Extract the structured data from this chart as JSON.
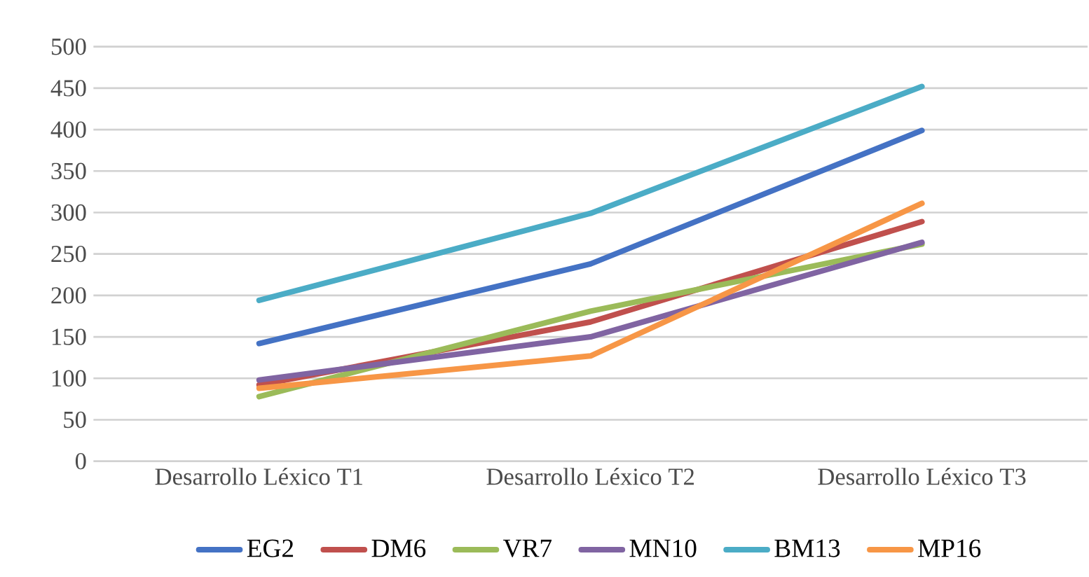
{
  "chart_data": {
    "type": "line",
    "categories": [
      "Desarrollo Léxico T1",
      "Desarrollo Léxico T2",
      "Desarrollo Léxico T3"
    ],
    "series": [
      {
        "name": "EG2",
        "color": "#4472c4",
        "values": [
          142,
          238,
          399
        ]
      },
      {
        "name": "DM6",
        "color": "#c0504d",
        "values": [
          92,
          168,
          289
        ]
      },
      {
        "name": "VR7",
        "color": "#9bbb59",
        "values": [
          78,
          181,
          262
        ]
      },
      {
        "name": "MN10",
        "color": "#8064a2",
        "values": [
          98,
          150,
          264
        ]
      },
      {
        "name": "BM13",
        "color": "#4bacc6",
        "values": [
          194,
          299,
          452
        ]
      },
      {
        "name": "MP16",
        "color": "#f79646",
        "values": [
          88,
          127,
          311
        ]
      }
    ],
    "ylim": [
      0,
      500
    ],
    "yticks": [
      0,
      50,
      100,
      150,
      200,
      250,
      300,
      350,
      400,
      450,
      500
    ],
    "grid": "y",
    "legend": "bottom",
    "marker": "none",
    "line_style": "solid"
  }
}
